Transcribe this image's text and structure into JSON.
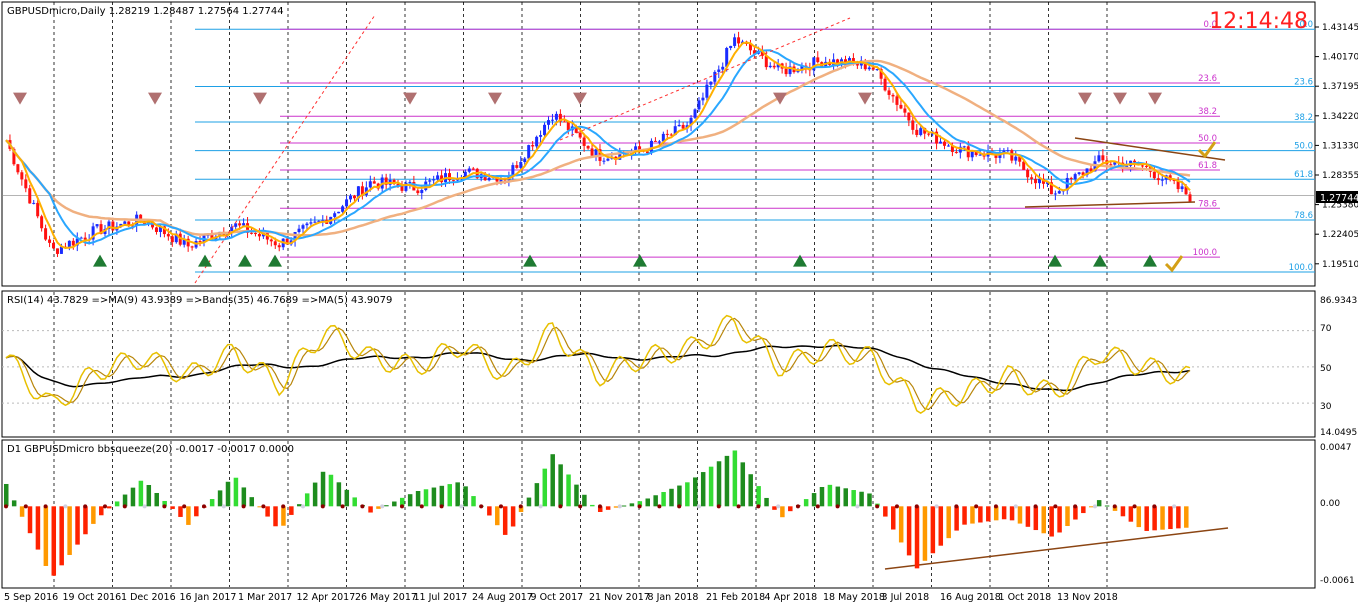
{
  "panels": {
    "main": {
      "header": "GBPUSDmicro,Daily  1.28219 1.28487 1.27564 1.27744",
      "clock": "12:14:48",
      "last_price_label": "1.27744",
      "y_ticks": [
        "1.43145",
        "1.40170",
        "1.37195",
        "1.34220",
        "1.31330",
        "1.28355",
        "1.25380",
        "1.22405",
        "1.19510"
      ]
    },
    "rsi": {
      "header": "RSI(14) 43.7829  =>MA(9) 43.9389  =>Bands(35) 46.7689  =>MA(5) 43.9079",
      "y_ticks": [
        "86.9343",
        "70",
        "50",
        "30",
        "14.0495"
      ]
    },
    "squeeze": {
      "header": "D1 GBPUSDmicro bbsqueeze(20) -0.0017 -0.0017 0.0000",
      "y_ticks": [
        "0.0047",
        "0.00",
        "-0.0061"
      ]
    }
  },
  "x_ticks": [
    "5 Sep 2016",
    "19 Oct 2016",
    "1 Dec 2016",
    "16 Jan 2017",
    "1 Mar 2017",
    "12 Apr 2017",
    "26 May 2017",
    "11 Jul 2017",
    "24 Aug 2017",
    "9 Oct 2017",
    "21 Nov 2017",
    "8 Jan 2018",
    "21 Feb 2018",
    "4 Apr 2018",
    "18 May 2018",
    "3 Jul 2018",
    "16 Aug 2018",
    "1 Oct 2018",
    "13 Nov 2018"
  ],
  "fib_levels": {
    "blue": [
      {
        "label": "0.0",
        "price": 1.4345
      },
      {
        "label": "23.6",
        "price": 1.3805
      },
      {
        "label": "38.2",
        "price": 1.347
      },
      {
        "label": "50.0",
        "price": 1.32
      },
      {
        "label": "61.8",
        "price": 1.293
      },
      {
        "label": "78.6",
        "price": 1.2545
      },
      {
        "label": "100.0",
        "price": 1.2055
      }
    ],
    "magenta": [
      {
        "label": "0.0",
        "price": 1.4345
      },
      {
        "label": "23.6",
        "price": 1.3838
      },
      {
        "label": "38.2",
        "price": 1.3524
      },
      {
        "label": "50.0",
        "price": 1.3271
      },
      {
        "label": "61.8",
        "price": 1.3017
      },
      {
        "label": "78.6",
        "price": 1.2656
      },
      {
        "label": "100.0",
        "price": 1.2195
      }
    ]
  },
  "colors": {
    "bull": "#1a2cff",
    "bear": "#ff1010",
    "ma_fast": "#ffb000",
    "ma_mid": "#2aa7ff",
    "ma_slow": "#f0b080",
    "fib_blue": "#1ea0e6",
    "fib_magenta": "#cc33cc",
    "rsi": "#e8c000",
    "rsi_ma": "#000000",
    "grid": "#000000",
    "clock": "#ff2020"
  },
  "chart_data": [
    {
      "type": "candlestick",
      "symbol": "GBPUSDmicro",
      "timeframe": "Daily",
      "ylim": [
        1.1951,
        1.446
      ],
      "last_price": 1.27744,
      "x": [
        "Sep 2016",
        "Oct 2016",
        "Nov 2016",
        "Dec 2016",
        "Jan 2017",
        "Feb 2017",
        "Mar 2017",
        "Apr 2017",
        "May 2017",
        "Jun 2017",
        "Jul 2017",
        "Aug 2017",
        "Sep 2017",
        "Oct 2017",
        "Nov 2017",
        "Dec 2017",
        "Jan 2018",
        "Feb 2018",
        "Mar 2018",
        "Apr 2018",
        "May 2018",
        "Jun 2018",
        "Jul 2018",
        "Aug 2018",
        "Sep 2018",
        "Oct 2018",
        "Nov 2018"
      ],
      "close": [
        1.33,
        1.225,
        1.245,
        1.255,
        1.23,
        1.25,
        1.232,
        1.255,
        1.29,
        1.285,
        1.3,
        1.295,
        1.355,
        1.315,
        1.32,
        1.345,
        1.425,
        1.395,
        1.405,
        1.4,
        1.34,
        1.32,
        1.315,
        1.28,
        1.31,
        1.305,
        1.277
      ]
    },
    {
      "type": "line",
      "name": "RSI(14)",
      "ylim": [
        14.0495,
        86.9343
      ],
      "x": [
        "Sep 2016",
        "Oct 2016",
        "Nov 2016",
        "Dec 2016",
        "Jan 2017",
        "Feb 2017",
        "Mar 2017",
        "Apr 2017",
        "May 2017",
        "Jun 2017",
        "Jul 2017",
        "Aug 2017",
        "Sep 2017",
        "Oct 2017",
        "Nov 2017",
        "Dec 2017",
        "Jan 2018",
        "Feb 2018",
        "Mar 2018",
        "Apr 2018",
        "May 2018",
        "Jun 2018",
        "Jul 2018",
        "Aug 2018",
        "Sep 2018",
        "Oct 2018",
        "Nov 2018"
      ],
      "values": [
        55,
        28,
        48,
        55,
        45,
        58,
        40,
        70,
        55,
        50,
        62,
        45,
        70,
        45,
        55,
        60,
        75,
        50,
        60,
        55,
        30,
        35,
        45,
        35,
        58,
        50,
        44
      ]
    },
    {
      "type": "area",
      "name": "bbsqueeze(20)",
      "ylim": [
        -0.0061,
        0.0047
      ],
      "x": [
        "Sep 2016",
        "Oct 2016",
        "Nov 2016",
        "Dec 2016",
        "Jan 2017",
        "Feb 2017",
        "Mar 2017",
        "Apr 2017",
        "May 2017",
        "Jun 2017",
        "Jul 2017",
        "Aug 2017",
        "Sep 2017",
        "Oct 2017",
        "Nov 2017",
        "Dec 2017",
        "Jan 2018",
        "Feb 2018",
        "Mar 2018",
        "Apr 2018",
        "May 2018",
        "Jun 2018",
        "Jul 2018",
        "Aug 2018",
        "Sep 2018",
        "Oct 2018",
        "Nov 2018"
      ],
      "values": [
        0.0018,
        -0.0058,
        -0.001,
        0.0022,
        -0.0015,
        0.0025,
        -0.002,
        0.003,
        -0.0005,
        0.0012,
        0.002,
        -0.0025,
        0.0042,
        -0.0005,
        0.0005,
        0.002,
        0.0045,
        -0.001,
        0.0018,
        0.001,
        -0.005,
        -0.0015,
        -0.001,
        -0.0025,
        0.0005,
        -0.002,
        -0.0017
      ]
    }
  ]
}
